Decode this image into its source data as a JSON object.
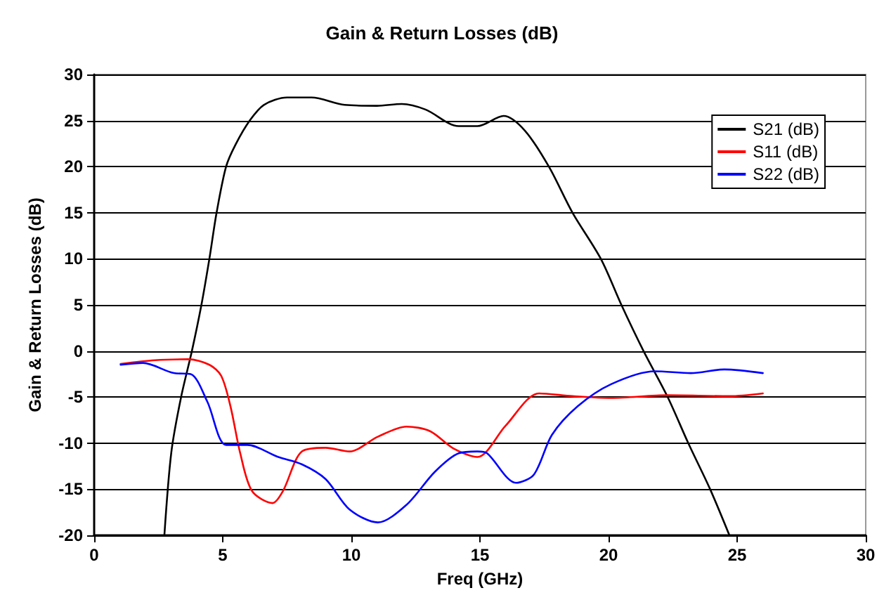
{
  "chart_data": {
    "type": "line",
    "title": "Gain & Return Losses (dB)",
    "xlabel": "Freq (GHz)",
    "ylabel": "Gain & Return Losses (dB)",
    "xlim": [
      0,
      30
    ],
    "xticks": [
      0,
      5,
      10,
      15,
      20,
      25,
      30
    ],
    "ylim": [
      -20,
      30
    ],
    "yticks": [
      -20,
      -15,
      -10,
      -5,
      0,
      5,
      10,
      15,
      20,
      25,
      30
    ],
    "grid": "y",
    "legend": "top right",
    "marker": "none",
    "series": [
      {
        "name": "S21 (dB)",
        "color": "#000000",
        "x": [
          2.73,
          3.0,
          3.38,
          3.8,
          4.17,
          4.48,
          4.76,
          5.13,
          5.5,
          6.05,
          6.6,
          7.5,
          8.45,
          9.74,
          11.0,
          11.96,
          12.88,
          14.17,
          14.9,
          15.92,
          16.75,
          17.68,
          18.6,
          19.7,
          20.5,
          21.36,
          22.3,
          23.1,
          23.95,
          24.7
        ],
        "values": [
          -20,
          -11,
          -5,
          0,
          5,
          10,
          15,
          20,
          22.4,
          25,
          26.7,
          27.5,
          27.5,
          26.7,
          26.6,
          26.8,
          26.2,
          24.4,
          24.4,
          25.5,
          23.9,
          20,
          15,
          10,
          5,
          0,
          -5,
          -10,
          -15,
          -20
        ]
      },
      {
        "name": "S11 (dB)",
        "color": "#ff0000",
        "x": [
          1.03,
          2.36,
          3.65,
          4.48,
          4.94,
          5.3,
          5.68,
          6.14,
          6.94,
          7.34,
          8.08,
          9.0,
          9.93,
          11.03,
          12.14,
          13.06,
          13.98,
          14.9,
          16.0,
          17.3,
          18.6,
          20.1,
          22.3,
          24.7,
          26.0
        ],
        "values": [
          -1.4,
          -1.0,
          -0.9,
          -1.5,
          -2.7,
          -6,
          -11.1,
          -15.2,
          -16.5,
          -15.2,
          -10.9,
          -10.5,
          -10.9,
          -9.3,
          -8.2,
          -8.7,
          -10.6,
          -11.5,
          -8.1,
          -4.6,
          -4.9,
          -5.1,
          -4.8,
          -4.9,
          -4.6
        ]
      },
      {
        "name": "S22 (dB)",
        "color": "#0000ff",
        "x": [
          1.03,
          1.9,
          3.1,
          3.75,
          4.4,
          5.13,
          5.96,
          7.16,
          8.08,
          9.0,
          9.93,
          11.03,
          12.14,
          13.25,
          14.17,
          14.9,
          15.28,
          16.4,
          17.1,
          17.8,
          18.8,
          20.1,
          21.8,
          23.2,
          24.5,
          26.0
        ],
        "values": [
          -1.5,
          -1.3,
          -2.4,
          -2.5,
          -5.5,
          -10.2,
          -10.2,
          -11.5,
          -12.3,
          -13.9,
          -17.2,
          -18.6,
          -16.7,
          -13.1,
          -11.1,
          -10.9,
          -11.1,
          -14.3,
          -13.4,
          -9.1,
          -6,
          -3.6,
          -2.2,
          -2.4,
          -2.0,
          -2.4
        ]
      }
    ]
  }
}
